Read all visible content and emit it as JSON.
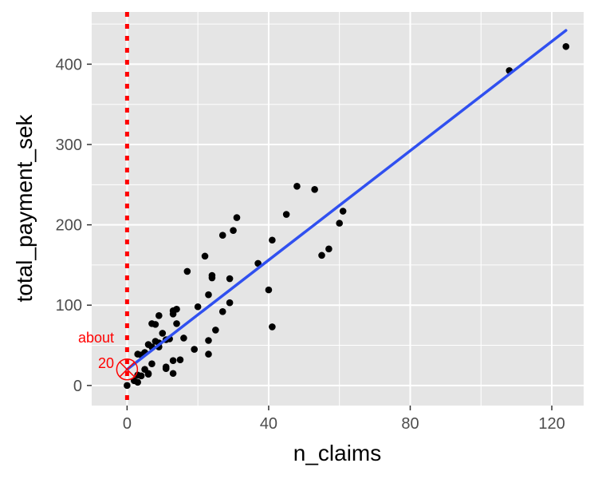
{
  "chart_data": {
    "type": "scatter",
    "xlabel": "n_claims",
    "ylabel": "total_payment_sek",
    "xlim": [
      -10,
      129
    ],
    "ylim": [
      -25,
      465
    ],
    "x_ticks": [
      0,
      40,
      80,
      120
    ],
    "y_ticks": [
      0,
      100,
      200,
      300,
      400
    ],
    "grid": true,
    "colors": {
      "panel_bg": "#e5e5e5",
      "grid": "#ffffff",
      "points": "#000000",
      "fit_line": "#3050f0",
      "annotation": "#ff0000"
    },
    "points": [
      [
        124,
        422
      ],
      [
        108,
        392
      ],
      [
        61,
        217
      ],
      [
        60,
        202
      ],
      [
        57,
        170
      ],
      [
        55,
        162
      ],
      [
        53,
        244
      ],
      [
        48,
        248
      ],
      [
        45,
        213
      ],
      [
        41,
        181
      ],
      [
        41,
        73
      ],
      [
        40,
        119
      ],
      [
        37,
        152
      ],
      [
        31,
        209
      ],
      [
        30,
        193
      ],
      [
        29,
        133
      ],
      [
        29,
        103
      ],
      [
        27,
        187
      ],
      [
        27,
        92
      ],
      [
        25,
        69
      ],
      [
        24,
        137
      ],
      [
        24,
        134
      ],
      [
        23,
        113
      ],
      [
        23,
        56
      ],
      [
        23,
        39
      ],
      [
        22,
        161
      ],
      [
        20,
        98
      ],
      [
        19,
        45
      ],
      [
        17,
        142
      ],
      [
        16,
        59
      ],
      [
        15,
        32
      ],
      [
        14,
        95
      ],
      [
        14,
        77
      ],
      [
        13,
        93
      ],
      [
        13,
        89
      ],
      [
        13,
        31
      ],
      [
        13,
        15
      ],
      [
        12,
        58
      ],
      [
        11,
        57
      ],
      [
        11,
        23
      ],
      [
        11,
        21
      ],
      [
        10,
        65
      ],
      [
        9,
        87
      ],
      [
        9,
        48
      ],
      [
        9,
        53
      ],
      [
        8,
        76
      ],
      [
        8,
        55
      ],
      [
        7,
        77
      ],
      [
        7,
        48
      ],
      [
        7,
        27
      ],
      [
        6,
        51
      ],
      [
        6,
        14
      ],
      [
        6,
        15
      ],
      [
        5,
        41
      ],
      [
        5,
        20
      ],
      [
        4,
        38
      ],
      [
        4,
        12
      ],
      [
        3,
        39
      ],
      [
        3,
        13
      ],
      [
        3,
        4
      ],
      [
        2,
        6
      ],
      [
        0,
        0
      ]
    ],
    "fit_line": {
      "x": [
        0,
        124
      ],
      "y": [
        20,
        442
      ]
    },
    "annotations": {
      "vline_x": 0,
      "intercept_marker": {
        "x": 0,
        "y": 20
      },
      "label_line1": "about",
      "label_line2": "20"
    }
  }
}
